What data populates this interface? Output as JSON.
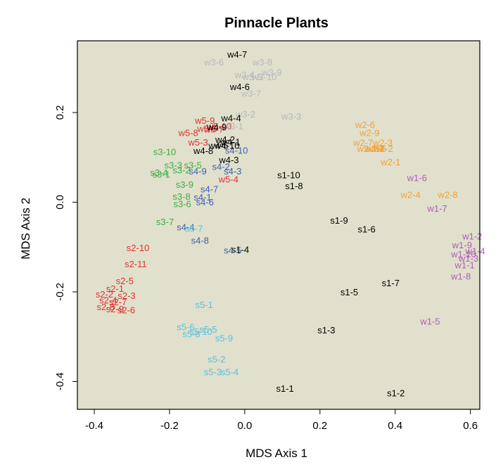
{
  "chart_data": {
    "type": "scatter",
    "title": "Pinnacle Plants",
    "xlabel": "MDS Axis 1",
    "ylabel": "MDS Axis 2",
    "xlim": [
      -0.445,
      0.625
    ],
    "ylim": [
      -0.462,
      0.36
    ],
    "xticks": [
      -0.4,
      -0.2,
      0.0,
      0.2,
      0.4,
      0.6
    ],
    "xtick_labels": [
      "-0.4",
      "-0.2",
      "0.0",
      "0.2",
      "0.4",
      "0.6"
    ],
    "yticks": [
      -0.4,
      -0.2,
      0.0,
      0.2
    ],
    "ytick_labels": [
      "-0.4",
      "-0.2",
      "0.0",
      "0.2"
    ],
    "grid": false,
    "background_color": "#e0e0cc",
    "series": [
      {
        "color": "#000000",
        "points": [
          {
            "label": "s1-10",
            "x": 0.117,
            "y": 0.061
          },
          {
            "label": "s1-8",
            "x": 0.131,
            "y": 0.037
          },
          {
            "label": "s1-9",
            "x": 0.251,
            "y": -0.04
          },
          {
            "label": "s1-6",
            "x": 0.324,
            "y": -0.06
          },
          {
            "label": "s1-4",
            "x": -0.012,
            "y": -0.105
          },
          {
            "label": "s1-7",
            "x": 0.388,
            "y": -0.18
          },
          {
            "label": "s1-5",
            "x": 0.278,
            "y": -0.2
          },
          {
            "label": "s1-3",
            "x": 0.217,
            "y": -0.285
          },
          {
            "label": "s1-1",
            "x": 0.107,
            "y": -0.415
          },
          {
            "label": "s1-2",
            "x": 0.402,
            "y": -0.425
          }
        ]
      },
      {
        "color": "#e03131",
        "points": [
          {
            "label": "s2-10",
            "x": -0.284,
            "y": -0.101
          },
          {
            "label": "s2-11",
            "x": -0.29,
            "y": -0.137
          },
          {
            "label": "s2-5",
            "x": -0.319,
            "y": -0.175
          },
          {
            "label": "s2-1",
            "x": -0.345,
            "y": -0.192
          },
          {
            "label": "s2-3",
            "x": -0.314,
            "y": -0.208
          },
          {
            "label": "s2-2",
            "x": -0.373,
            "y": -0.205
          },
          {
            "label": "s2-4",
            "x": -0.363,
            "y": -0.218
          },
          {
            "label": "s2-7",
            "x": -0.337,
            "y": -0.222
          },
          {
            "label": "s2-8",
            "x": -0.37,
            "y": -0.233
          },
          {
            "label": "s2-9",
            "x": -0.345,
            "y": -0.238
          },
          {
            "label": "s2-6",
            "x": -0.315,
            "y": -0.24
          },
          {
            "label": "w5-9",
            "x": -0.106,
            "y": 0.183
          },
          {
            "label": "w5-6",
            "x": -0.1,
            "y": 0.165
          },
          {
            "label": "w5-10",
            "x": -0.068,
            "y": 0.17
          },
          {
            "label": "w5-8",
            "x": -0.15,
            "y": 0.155
          },
          {
            "label": "w5-7",
            "x": -0.082,
            "y": 0.163
          },
          {
            "label": "w5-3",
            "x": -0.124,
            "y": 0.134
          },
          {
            "label": "w5-4",
            "x": -0.043,
            "y": 0.052
          }
        ]
      },
      {
        "color": "#3cb043",
        "points": [
          {
            "label": "s3-10",
            "x": -0.213,
            "y": 0.113
          },
          {
            "label": "s3-3",
            "x": -0.19,
            "y": 0.083
          },
          {
            "label": "s3-5",
            "x": -0.138,
            "y": 0.083
          },
          {
            "label": "s3-2",
            "x": -0.168,
            "y": 0.072
          },
          {
            "label": "s3-4",
            "x": -0.228,
            "y": 0.067
          },
          {
            "label": "s3-1",
            "x": -0.222,
            "y": 0.063
          },
          {
            "label": "s3-9",
            "x": -0.16,
            "y": 0.04
          },
          {
            "label": "s3-8",
            "x": -0.168,
            "y": 0.013
          },
          {
            "label": "s3-6",
            "x": -0.166,
            "y": -0.003
          },
          {
            "label": "s3-7",
            "x": -0.212,
            "y": -0.043
          }
        ]
      },
      {
        "color": "#3f5fb3",
        "points": [
          {
            "label": "s4-10",
            "x": -0.022,
            "y": 0.116
          },
          {
            "label": "s4-9",
            "x": -0.125,
            "y": 0.07
          },
          {
            "label": "s4-2",
            "x": -0.063,
            "y": 0.08
          },
          {
            "label": "s4-3",
            "x": -0.032,
            "y": 0.07
          },
          {
            "label": "s4-7",
            "x": -0.094,
            "y": 0.03
          },
          {
            "label": "s4-1",
            "x": -0.112,
            "y": 0.012
          },
          {
            "label": "s4-6",
            "x": -0.106,
            "y": 0.001
          },
          {
            "label": "s4-4",
            "x": -0.157,
            "y": -0.055
          },
          {
            "label": "s4-8",
            "x": -0.119,
            "y": -0.085
          },
          {
            "label": "s4-5",
            "x": -0.032,
            "y": -0.107
          }
        ]
      },
      {
        "color": "#5bc0de",
        "points": [
          {
            "label": "s5-7",
            "x": -0.135,
            "y": -0.058
          },
          {
            "label": "s5-1",
            "x": -0.108,
            "y": -0.228
          },
          {
            "label": "s5-6",
            "x": -0.157,
            "y": -0.278
          },
          {
            "label": "s5-5",
            "x": -0.097,
            "y": -0.283
          },
          {
            "label": "s5-10",
            "x": -0.117,
            "y": -0.288
          },
          {
            "label": "s5-8",
            "x": -0.142,
            "y": -0.293
          },
          {
            "label": "s5-9",
            "x": -0.055,
            "y": -0.303
          },
          {
            "label": "s5-2",
            "x": -0.075,
            "y": -0.35
          },
          {
            "label": "s5-3",
            "x": -0.085,
            "y": -0.378
          },
          {
            "label": "s5-4",
            "x": -0.04,
            "y": -0.378
          }
        ]
      },
      {
        "color": "#b8b8bf",
        "points": [
          {
            "label": "w3-6",
            "x": -0.082,
            "y": 0.313
          },
          {
            "label": "w3-8",
            "x": 0.047,
            "y": 0.313
          },
          {
            "label": "w3-9",
            "x": 0.072,
            "y": 0.29
          },
          {
            "label": "w3-4",
            "x": 0.0,
            "y": 0.285
          },
          {
            "label": "w3-5",
            "x": 0.02,
            "y": 0.28
          },
          {
            "label": "w3-10",
            "x": 0.052,
            "y": 0.28
          },
          {
            "label": "w3-7",
            "x": 0.017,
            "y": 0.243
          },
          {
            "label": "w3-2",
            "x": 0.002,
            "y": 0.197
          },
          {
            "label": "w3-3",
            "x": 0.124,
            "y": 0.192
          },
          {
            "label": "w3-1",
            "x": -0.03,
            "y": 0.17
          }
        ]
      },
      {
        "color": "#000000",
        "points": [
          {
            "label": "w4-7",
            "x": -0.02,
            "y": 0.33
          },
          {
            "label": "w4-6",
            "x": -0.013,
            "y": 0.258
          },
          {
            "label": "w4-4",
            "x": -0.036,
            "y": 0.188
          },
          {
            "label": "w4-9",
            "x": -0.074,
            "y": 0.168
          },
          {
            "label": "w4-2",
            "x": -0.052,
            "y": 0.14
          },
          {
            "label": "w4-1",
            "x": -0.038,
            "y": 0.135
          },
          {
            "label": "w4-10",
            "x": -0.047,
            "y": 0.127
          },
          {
            "label": "w4-5",
            "x": -0.07,
            "y": 0.127
          },
          {
            "label": "w4-8",
            "x": -0.11,
            "y": 0.115
          },
          {
            "label": "w4-3",
            "x": -0.042,
            "y": 0.095
          }
        ]
      },
      {
        "color": "#f5a135",
        "points": [
          {
            "label": "w2-6",
            "x": 0.32,
            "y": 0.173
          },
          {
            "label": "w2-9",
            "x": 0.332,
            "y": 0.155
          },
          {
            "label": "w2-7",
            "x": 0.315,
            "y": 0.133
          },
          {
            "label": "w2-3",
            "x": 0.367,
            "y": 0.133
          },
          {
            "label": "w2-10",
            "x": 0.332,
            "y": 0.12
          },
          {
            "label": "w2-5",
            "x": 0.35,
            "y": 0.12
          },
          {
            "label": "w2-4",
            "x": 0.345,
            "y": 0.12
          },
          {
            "label": "w2-2",
            "x": 0.368,
            "y": 0.12
          },
          {
            "label": "w2-1",
            "x": 0.388,
            "y": 0.09
          },
          {
            "label": "w2-4",
            "x": 0.441,
            "y": 0.017
          },
          {
            "label": "w2-8",
            "x": 0.54,
            "y": 0.017
          }
        ]
      },
      {
        "color": "#b05bb8",
        "points": [
          {
            "label": "w1-6",
            "x": 0.458,
            "y": 0.055
          },
          {
            "label": "w1-7",
            "x": 0.512,
            "y": -0.013
          },
          {
            "label": "w1-2",
            "x": 0.605,
            "y": -0.075
          },
          {
            "label": "w1-9",
            "x": 0.578,
            "y": -0.095
          },
          {
            "label": "w1-4",
            "x": 0.613,
            "y": -0.108
          },
          {
            "label": "w1-10",
            "x": 0.582,
            "y": -0.115
          },
          {
            "label": "w1-3",
            "x": 0.595,
            "y": -0.125
          },
          {
            "label": "w1-1",
            "x": 0.585,
            "y": -0.14
          },
          {
            "label": "w1-8",
            "x": 0.575,
            "y": -0.165
          },
          {
            "label": "w1-5",
            "x": 0.493,
            "y": -0.265
          }
        ]
      }
    ]
  }
}
